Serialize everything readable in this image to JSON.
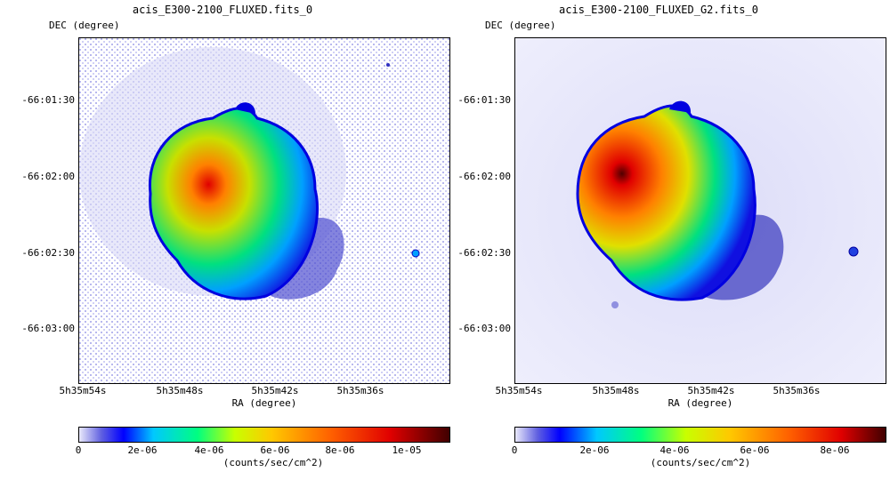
{
  "left": {
    "title": "acis_E300-2100_FLUXED.fits_0",
    "y_axis_title": "DEC (degree)",
    "x_axis_title": "RA (degree)",
    "y_ticks": [
      "-66:01:30",
      "-66:02:00",
      "-66:02:30",
      "-66:03:00"
    ],
    "x_ticks": [
      "5h35m54s",
      "5h35m48s",
      "5h35m42s",
      "5h35m36s"
    ],
    "colorbar_ticks": [
      "0",
      "2e-06",
      "4e-06",
      "6e-06",
      "8e-06",
      "1e-05"
    ],
    "colorbar_title": "(counts/sec/cm^2)"
  },
  "right": {
    "title": "acis_E300-2100_FLUXED_G2.fits_0",
    "y_axis_title": "DEC (degree)",
    "x_axis_title": "RA (degree)",
    "y_ticks": [
      "-66:01:30",
      "-66:02:00",
      "-66:02:30",
      "-66:03:00"
    ],
    "x_ticks": [
      "5h35m54s",
      "5h35m48s",
      "5h35m42s",
      "5h35m36s"
    ],
    "colorbar_ticks": [
      "0",
      "2e-06",
      "4e-06",
      "6e-06",
      "8e-06"
    ],
    "colorbar_title": "(counts/sec/cm^2)"
  },
  "colors": {
    "background_noise": "#c8c8f0",
    "colormap": [
      "#e8e8fa",
      "#6060e0",
      "#0000ff",
      "#00c8ff",
      "#00ff80",
      "#c8ff00",
      "#ffc800",
      "#ff6000",
      "#e00000",
      "#400000"
    ]
  }
}
